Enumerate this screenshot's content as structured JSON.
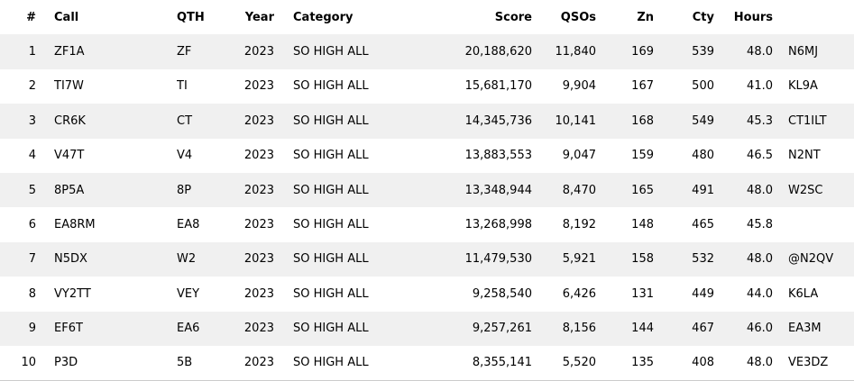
{
  "colors": {
    "background": "#ffffff",
    "stripe": "#f0f0f0",
    "text": "#000000",
    "bottom_border": "#cccccc"
  },
  "table": {
    "columns": [
      {
        "key": "rank",
        "label": "#"
      },
      {
        "key": "call",
        "label": "Call"
      },
      {
        "key": "qth",
        "label": "QTH"
      },
      {
        "key": "year",
        "label": "Year"
      },
      {
        "key": "category",
        "label": "Category"
      },
      {
        "key": "score",
        "label": "Score"
      },
      {
        "key": "qsos",
        "label": "QSOs"
      },
      {
        "key": "zn",
        "label": "Zn"
      },
      {
        "key": "cty",
        "label": "Cty"
      },
      {
        "key": "hours",
        "label": "Hours"
      },
      {
        "key": "operator",
        "label": ""
      }
    ],
    "rows": [
      {
        "rank": "1",
        "call": "ZF1A",
        "qth": "ZF",
        "year": "2023",
        "category": "SO HIGH ALL",
        "score": "20,188,620",
        "qsos": "11,840",
        "zn": "169",
        "cty": "539",
        "hours": "48.0",
        "operator": "N6MJ"
      },
      {
        "rank": "2",
        "call": "TI7W",
        "qth": "TI",
        "year": "2023",
        "category": "SO HIGH ALL",
        "score": "15,681,170",
        "qsos": "9,904",
        "zn": "167",
        "cty": "500",
        "hours": "41.0",
        "operator": "KL9A"
      },
      {
        "rank": "3",
        "call": "CR6K",
        "qth": "CT",
        "year": "2023",
        "category": "SO HIGH ALL",
        "score": "14,345,736",
        "qsos": "10,141",
        "zn": "168",
        "cty": "549",
        "hours": "45.3",
        "operator": "CT1ILT"
      },
      {
        "rank": "4",
        "call": "V47T",
        "qth": "V4",
        "year": "2023",
        "category": "SO HIGH ALL",
        "score": "13,883,553",
        "qsos": "9,047",
        "zn": "159",
        "cty": "480",
        "hours": "46.5",
        "operator": "N2NT"
      },
      {
        "rank": "5",
        "call": "8P5A",
        "qth": "8P",
        "year": "2023",
        "category": "SO HIGH ALL",
        "score": "13,348,944",
        "qsos": "8,470",
        "zn": "165",
        "cty": "491",
        "hours": "48.0",
        "operator": "W2SC"
      },
      {
        "rank": "6",
        "call": "EA8RM",
        "qth": "EA8",
        "year": "2023",
        "category": "SO HIGH ALL",
        "score": "13,268,998",
        "qsos": "8,192",
        "zn": "148",
        "cty": "465",
        "hours": "45.8",
        "operator": ""
      },
      {
        "rank": "7",
        "call": "N5DX",
        "qth": "W2",
        "year": "2023",
        "category": "SO HIGH ALL",
        "score": "11,479,530",
        "qsos": "5,921",
        "zn": "158",
        "cty": "532",
        "hours": "48.0",
        "operator": "@N2QV"
      },
      {
        "rank": "8",
        "call": "VY2TT",
        "qth": "VEY",
        "year": "2023",
        "category": "SO HIGH ALL",
        "score": "9,258,540",
        "qsos": "6,426",
        "zn": "131",
        "cty": "449",
        "hours": "44.0",
        "operator": "K6LA"
      },
      {
        "rank": "9",
        "call": "EF6T",
        "qth": "EA6",
        "year": "2023",
        "category": "SO HIGH ALL",
        "score": "9,257,261",
        "qsos": "8,156",
        "zn": "144",
        "cty": "467",
        "hours": "46.0",
        "operator": "EA3M"
      },
      {
        "rank": "10",
        "call": "P3D",
        "qth": "5B",
        "year": "2023",
        "category": "SO HIGH ALL",
        "score": "8,355,141",
        "qsos": "5,520",
        "zn": "135",
        "cty": "408",
        "hours": "48.0",
        "operator": "VE3DZ"
      }
    ]
  }
}
